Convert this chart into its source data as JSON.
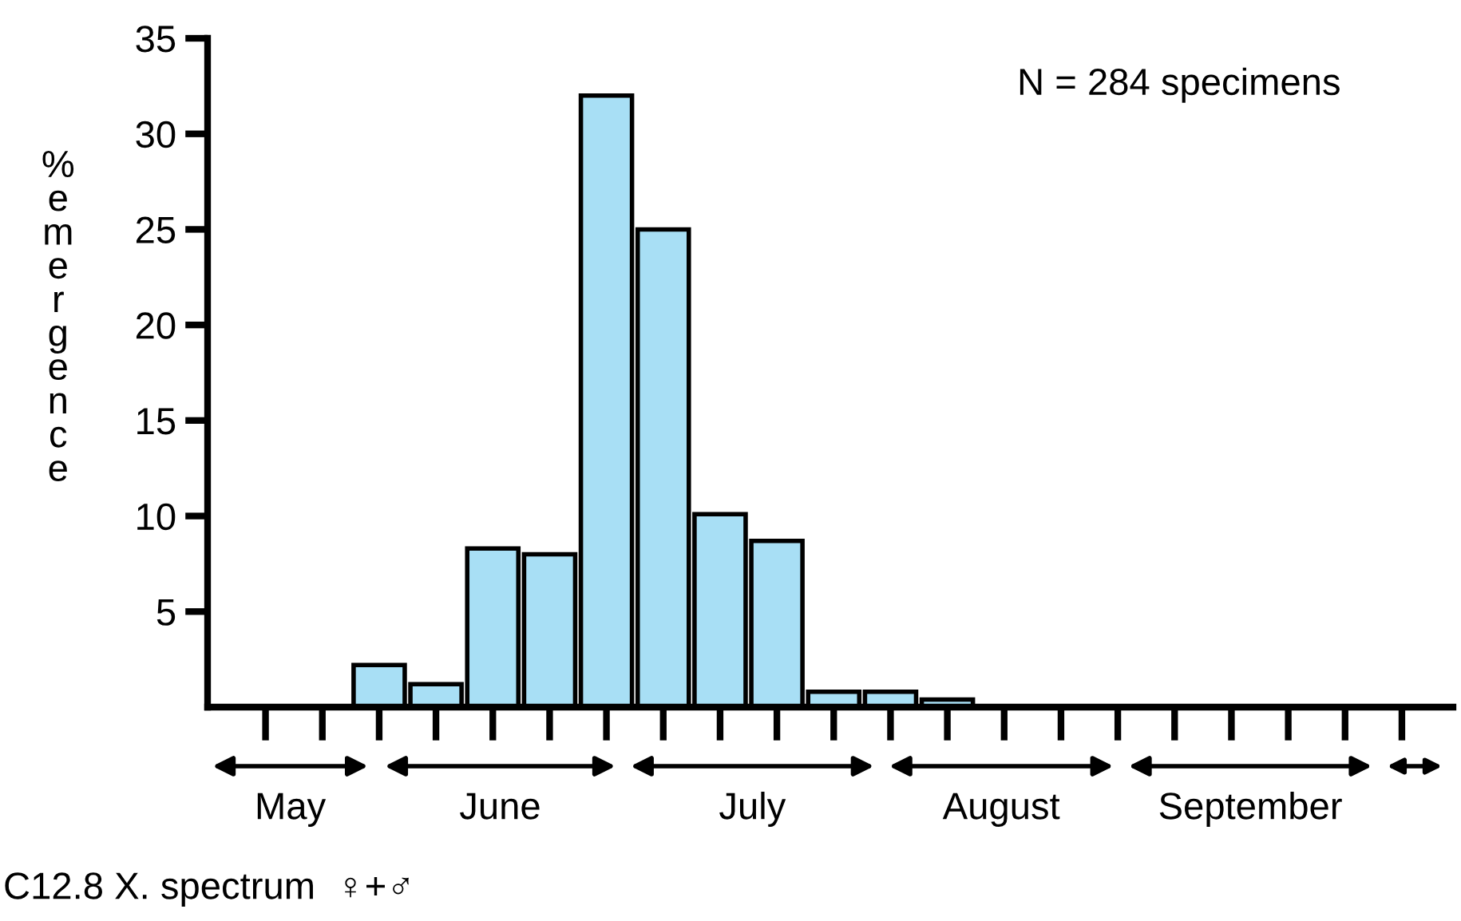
{
  "chart_data": {
    "type": "bar",
    "ylabel": "%emergence",
    "categories": [
      null,
      null,
      null,
      null,
      null,
      null,
      null,
      null,
      null,
      null,
      null,
      null,
      null,
      null,
      null,
      null,
      null,
      null,
      null,
      null,
      null
    ],
    "values": [
      null,
      null,
      2.2,
      1.2,
      8.3,
      8.0,
      32,
      25,
      10.1,
      8.7,
      0.8,
      0.8,
      0.4,
      null,
      null,
      null,
      null,
      null,
      null,
      null,
      null
    ],
    "color": "#a8dff5",
    "ylim": [
      0,
      35
    ],
    "yticks": [
      5,
      10,
      15,
      20,
      25,
      30,
      35
    ],
    "grid": false,
    "annotations": [
      "N = 284 specimens",
      "May",
      "June",
      "July",
      "August",
      "September",
      "C12.8 X. spectrum  ♀+♂"
    ]
  }
}
